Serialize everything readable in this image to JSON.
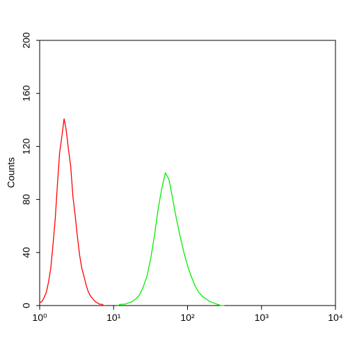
{
  "chart_data": {
    "type": "line",
    "y_label": "Counts",
    "xscale": "log",
    "xlim": [
      1,
      10000
    ],
    "xticks": [
      {
        "value": 1,
        "label": "10⁰"
      },
      {
        "value": 10,
        "label": "10¹"
      },
      {
        "value": 100,
        "label": "10²"
      },
      {
        "value": 1000,
        "label": "10³"
      },
      {
        "value": 10000,
        "label": "10⁴"
      }
    ],
    "ylim": [
      0,
      200
    ],
    "yticks": [
      0,
      40,
      80,
      120,
      160,
      200
    ],
    "series": [
      {
        "color": "#ff0000",
        "x": [
          1,
          1.07,
          1.15,
          1.23,
          1.32,
          1.41,
          1.51,
          1.62,
          1.74,
          1.86,
          2.0,
          2.14,
          2.29,
          2.45,
          2.63,
          2.82,
          3.02,
          3.24,
          3.47,
          3.72,
          3.98,
          4.27,
          4.57,
          4.9,
          5.25,
          5.62,
          6.03,
          6.46,
          6.92,
          7.41,
          7.94
        ],
        "values": [
          2,
          3,
          6,
          10,
          18,
          28,
          45,
          65,
          92,
          115,
          128,
          141,
          132,
          118,
          105,
          82,
          68,
          52,
          38,
          28,
          22,
          15,
          10,
          7,
          5,
          3,
          2,
          1,
          1,
          0,
          0
        ]
      },
      {
        "color": "#00ee00",
        "x": [
          11.22,
          12.59,
          14.13,
          15.85,
          17.78,
          19.95,
          22.39,
          25.12,
          28.18,
          31.62,
          35.48,
          39.81,
          44.67,
          50.12,
          56.23,
          63.1,
          70.79,
          79.43,
          89.13,
          100,
          112.2,
          125.89,
          141.25,
          158.49,
          177.83,
          199.53,
          223.87,
          251.19,
          281.84,
          316.23
        ],
        "values": [
          0,
          1,
          1,
          2,
          3,
          5,
          8,
          14,
          22,
          35,
          52,
          72,
          88,
          100,
          95,
          80,
          65,
          52,
          40,
          30,
          22,
          15,
          10,
          7,
          5,
          3,
          2,
          1,
          0,
          0
        ]
      }
    ]
  }
}
